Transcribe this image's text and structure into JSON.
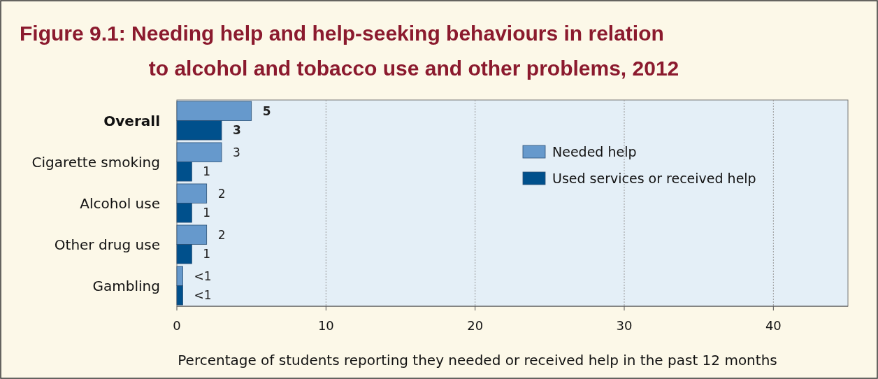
{
  "chart_data": {
    "type": "bar",
    "orientation": "horizontal",
    "title": "Figure 9.1: Needing help and help-seeking behaviours in relation to alcohol and tobacco use and other problems, 2012",
    "xlabel": "Percentage of students reporting they needed or received help in the past 12 months",
    "categories": [
      "Overall",
      "Cigarette smoking",
      "Alcohol use",
      "Other drug use",
      "Gambling"
    ],
    "series": [
      {
        "name": "Needed help",
        "color": "#6699cc",
        "values": [
          5,
          3,
          2,
          2,
          0.4
        ],
        "value_labels": [
          "5",
          "3",
          "2",
          "2",
          "<1"
        ]
      },
      {
        "name": "Used services or received help",
        "color": "#00508c",
        "values": [
          3,
          1,
          1,
          1,
          0.4
        ],
        "value_labels": [
          "3",
          "1",
          "1",
          "1",
          "<1"
        ]
      }
    ],
    "xlim": [
      0,
      45
    ],
    "xticks": [
      0,
      10,
      20,
      30,
      40
    ],
    "grid": "x",
    "legend": "top right"
  }
}
